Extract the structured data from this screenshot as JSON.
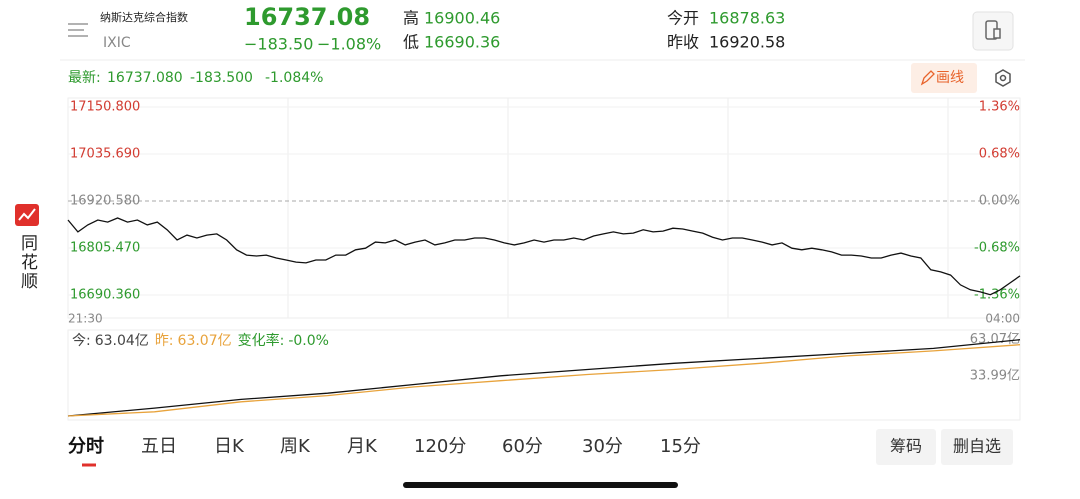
{
  "sidebar": {
    "brand": "同花顺"
  },
  "header": {
    "name": "纳斯达克综合指数",
    "code": "IXIC",
    "price": "16737.08",
    "change": "−183.50",
    "change_pct": "−1.08%",
    "high_label": "高",
    "high": "16900.46",
    "low_label": "低",
    "low": "16690.36",
    "open_label": "今开",
    "open": "16878.63",
    "prev_close_label": "昨收",
    "prev_close": "16920.58"
  },
  "toolbar": {
    "latest_label": "最新:",
    "latest": "16737.080",
    "change": "-183.500",
    "change_pct": "-1.084%",
    "draw_button": "画线"
  },
  "chart_data": [
    {
      "type": "line",
      "color": "#111111",
      "x_labels": [
        "21:30",
        "04:00"
      ],
      "values": [
        16874,
        16845,
        16862,
        16874,
        16869,
        16879,
        16869,
        16874,
        16862,
        16869,
        16850,
        16825,
        16837,
        16830,
        16837,
        16840,
        16825,
        16801,
        16788,
        16786,
        16788,
        16781,
        16776,
        16771,
        16769,
        16776,
        16776,
        16788,
        16788,
        16801,
        16805,
        16820,
        16818,
        16825,
        16813,
        16820,
        16825,
        16813,
        16818,
        16825,
        16825,
        16830,
        16830,
        16825,
        16818,
        16813,
        16818,
        16825,
        16820,
        16825,
        16825,
        16830,
        16825,
        16835,
        16840,
        16845,
        16840,
        16842,
        16850,
        16845,
        16847,
        16854,
        16852,
        16847,
        16842,
        16832,
        16825,
        16830,
        16830,
        16825,
        16820,
        16813,
        16818,
        16805,
        16801,
        16805,
        16801,
        16796,
        16788,
        16788,
        16786,
        16781,
        16781,
        16788,
        16793,
        16786,
        16781,
        16752,
        16747,
        16739,
        16715,
        16703,
        16698,
        16691,
        16703,
        16720,
        16737.08
      ],
      "ylim": [
        16634,
        17173
      ],
      "yticks": [
        {
          "value": 17150.8,
          "label": "17150.800"
        },
        {
          "value": 17035.69,
          "label": "17035.690"
        },
        {
          "value": 16920.58,
          "label": "16920.580"
        },
        {
          "value": 16805.47,
          "label": "16805.470"
        },
        {
          "value": 16690.36,
          "label": "16690.360"
        }
      ],
      "y2lim": [
        -1.69,
        1.49
      ],
      "y2ticks": [
        {
          "value": 1.36,
          "label": "1.36%"
        },
        {
          "value": 0.68,
          "label": "0.68%"
        },
        {
          "value": 0,
          "label": "0.00%"
        },
        {
          "value": -0.68,
          "label": "-0.68%"
        },
        {
          "value": -1.36,
          "label": "-1.36%"
        }
      ]
    },
    {
      "type": "line",
      "series": [
        {
          "name": "今:",
          "color": "#111111",
          "values": [
            1.6,
            8,
            15,
            20,
            27,
            34,
            39,
            44,
            48,
            52,
            56,
            63.04
          ]
        },
        {
          "name": "昨:",
          "color": "#e8a33c",
          "values": [
            1.6,
            5,
            13,
            18,
            25,
            30,
            35,
            39,
            44,
            50,
            54,
            59
          ]
        }
      ],
      "legend_values": [
        "63.04亿",
        "63.07亿"
      ],
      "change_rate_label": "变化率:",
      "change_rate": "-0.0%",
      "ylim": [
        0,
        66
      ],
      "yticks": [
        {
          "value": 63.07,
          "label": "63.07亿"
        },
        {
          "value": 33.99,
          "label": "33.99亿"
        }
      ]
    }
  ],
  "tabs": [
    "分时",
    "五日",
    "日K",
    "周K",
    "月K",
    "120分",
    "60分",
    "30分",
    "15分"
  ],
  "buttons": [
    "筹码",
    "删自选"
  ]
}
